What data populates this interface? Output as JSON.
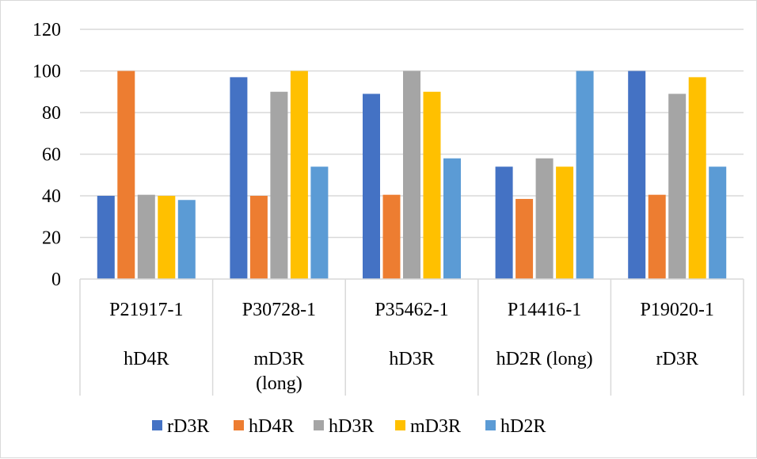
{
  "chart_data": {
    "type": "bar",
    "title": "",
    "xlabel": "",
    "ylabel": "",
    "ylim": [
      0,
      120
    ],
    "yticks": [
      0,
      20,
      40,
      60,
      80,
      100,
      120
    ],
    "grid": true,
    "legend_position": "bottom",
    "categories": [
      {
        "id": "P21917-1",
        "sublabel": [
          "hD4R"
        ]
      },
      {
        "id": "P30728-1",
        "sublabel": [
          "mD3R",
          "(long)"
        ]
      },
      {
        "id": "P35462-1",
        "sublabel": [
          "hD3R"
        ]
      },
      {
        "id": "P14416-1",
        "sublabel": [
          "hD2R (long)"
        ]
      },
      {
        "id": "P19020-1",
        "sublabel": [
          "rD3R"
        ]
      }
    ],
    "series": [
      {
        "name": "rD3R",
        "color": "#4472C4",
        "values": [
          40,
          97,
          89,
          54,
          100
        ]
      },
      {
        "name": "hD4R",
        "color": "#ED7D31",
        "values": [
          100,
          40,
          40.5,
          38.5,
          40.5
        ]
      },
      {
        "name": "hD3R",
        "color": "#A5A5A5",
        "values": [
          40.5,
          90,
          100,
          58,
          89
        ]
      },
      {
        "name": "mD3R",
        "color": "#FFC000",
        "values": [
          40,
          100,
          90,
          54,
          97
        ]
      },
      {
        "name": "hD2R",
        "color": "#5B9BD5",
        "values": [
          38,
          54,
          58,
          100,
          54
        ]
      }
    ]
  }
}
